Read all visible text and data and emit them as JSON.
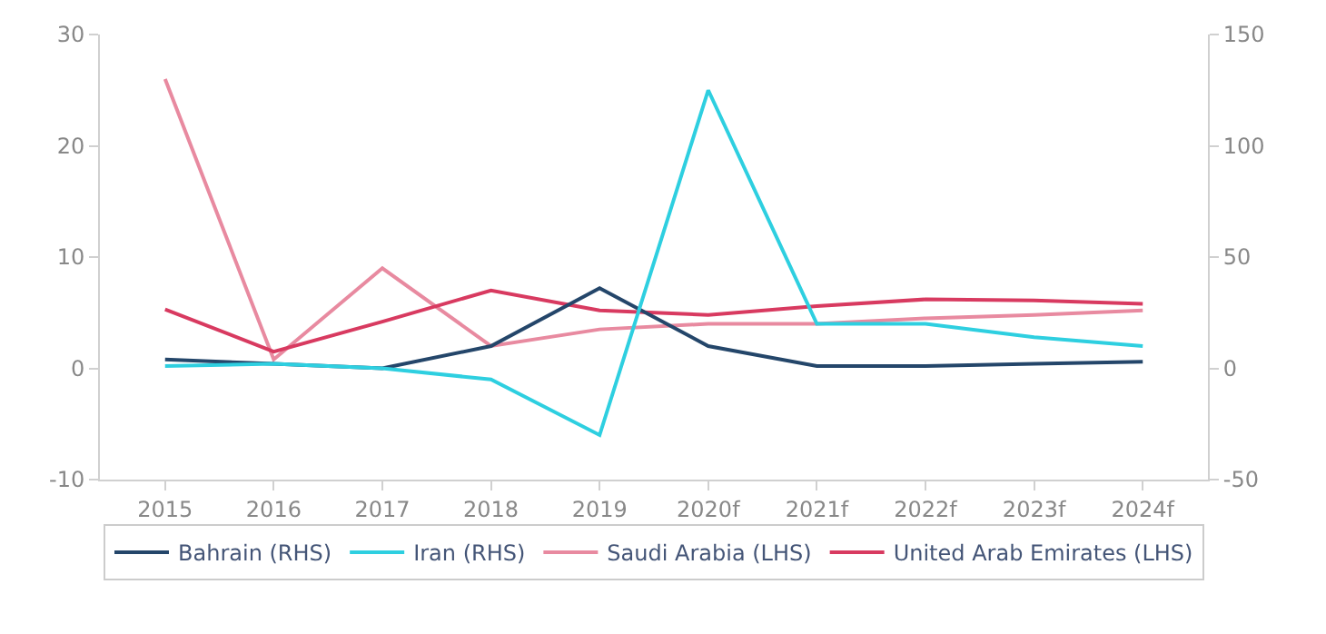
{
  "chart_data": {
    "type": "line",
    "categories": [
      "2015",
      "2016",
      "2017",
      "2018",
      "2019",
      "2020f",
      "2021f",
      "2022f",
      "2023f",
      "2024f"
    ],
    "series": [
      {
        "name": "Bahrain (RHS)",
        "color": "#24466a",
        "axis": "y2",
        "values": [
          4,
          2,
          0,
          10,
          36,
          10,
          1,
          1,
          2,
          3
        ]
      },
      {
        "name": "Iran (RHS)",
        "color": "#2ecfe0",
        "axis": "y2",
        "values": [
          1,
          2,
          0,
          -5,
          -30,
          125,
          20,
          20,
          14,
          10
        ]
      },
      {
        "name": "Saudi Arabia (LHS)",
        "color": "#e88aa0",
        "values": [
          26,
          0.8,
          9,
          2,
          3.5,
          4,
          4,
          4.5,
          4.8,
          5.2
        ]
      },
      {
        "name": "United Arab Emirates (LHS)",
        "color": "#d83a60",
        "values": [
          5.3,
          1.5,
          4.2,
          7,
          5.2,
          4.8,
          5.6,
          6.2,
          6.1,
          5.8
        ]
      }
    ],
    "ylim": [
      -10,
      30
    ],
    "yticks": [
      -10,
      0,
      10,
      20,
      30
    ],
    "y2lim": [
      -50,
      150
    ],
    "y2ticks": [
      -50,
      0,
      50,
      100,
      150
    ],
    "legend": "bottom",
    "marker": "none",
    "line_style": "solid"
  }
}
